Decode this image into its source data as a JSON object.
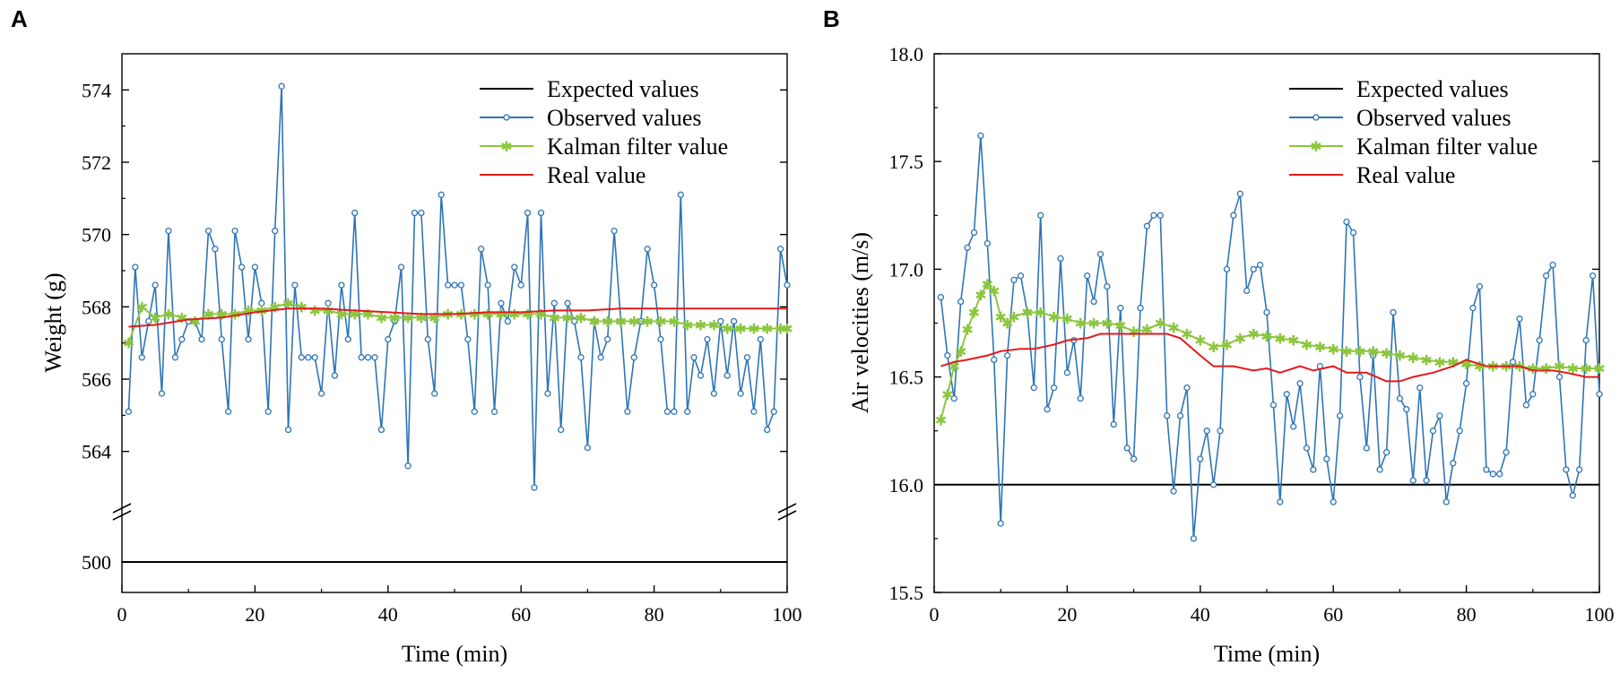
{
  "colors": {
    "expected": "#000000",
    "observed": "#2e75b6",
    "kalman": "#8cc63f",
    "real": "#e41a1c"
  },
  "chart_data": [
    {
      "panel": "A",
      "type": "line",
      "xlabel": "Time (min)",
      "ylabel": "Weight (g)",
      "xlim": [
        0,
        100
      ],
      "xticks": [
        0,
        20,
        40,
        60,
        80,
        100
      ],
      "xtick_labels": [
        "0",
        "20",
        "40",
        "60",
        "80",
        "100"
      ],
      "ylim_upper": [
        563,
        575
      ],
      "ylim_lower": [
        498,
        502
      ],
      "axis_break": true,
      "yticks": [
        500,
        564,
        566,
        568,
        570,
        572,
        574
      ],
      "ytick_labels": [
        "500",
        "564",
        "566",
        "568",
        "570",
        "572",
        "574"
      ],
      "legend": [
        "Expected values",
        "Observed values",
        "Kalman filter value",
        "Real value"
      ],
      "legend_position": "top-right",
      "series": [
        {
          "name": "Expected values",
          "x": [
            0,
            100
          ],
          "values": [
            500,
            500
          ]
        },
        {
          "name": "Observed values",
          "x": [
            1,
            2,
            3,
            4,
            5,
            6,
            7,
            8,
            9,
            10,
            11,
            12,
            13,
            14,
            15,
            16,
            17,
            18,
            19,
            20,
            21,
            22,
            23,
            24,
            25,
            26,
            27,
            28,
            29,
            30,
            31,
            32,
            33,
            34,
            35,
            36,
            37,
            38,
            39,
            40,
            41,
            42,
            43,
            44,
            45,
            46,
            47,
            48,
            49,
            50,
            51,
            52,
            53,
            54,
            55,
            56,
            57,
            58,
            59,
            60,
            61,
            62,
            63,
            64,
            65,
            66,
            67,
            68,
            69,
            70,
            71,
            72,
            73,
            74,
            75,
            76,
            77,
            78,
            79,
            80,
            81,
            82,
            83,
            84,
            85,
            86,
            87,
            88,
            89,
            90,
            91,
            92,
            93,
            94,
            95,
            96,
            97,
            98,
            99,
            100
          ],
          "values": [
            565.1,
            569.1,
            566.6,
            567.6,
            568.6,
            565.6,
            570.1,
            566.6,
            567.1,
            567.6,
            567.6,
            567.1,
            570.1,
            569.6,
            567.1,
            565.1,
            570.1,
            569.1,
            567.1,
            569.1,
            568.1,
            565.1,
            570.1,
            574.1,
            564.6,
            568.6,
            566.6,
            566.6,
            566.6,
            565.6,
            568.1,
            566.1,
            568.6,
            567.1,
            570.6,
            566.6,
            566.6,
            566.6,
            564.6,
            567.1,
            567.6,
            569.1,
            563.6,
            570.6,
            570.6,
            567.1,
            565.6,
            571.1,
            568.6,
            568.6,
            568.6,
            567.1,
            565.1,
            569.6,
            568.6,
            565.1,
            568.1,
            567.6,
            569.1,
            568.6,
            570.6,
            563.0,
            570.6,
            565.6,
            568.1,
            564.6,
            568.1,
            567.6,
            566.6,
            564.1,
            567.6,
            566.6,
            567.1,
            570.1,
            567.6,
            565.1,
            566.6,
            567.6,
            569.6,
            568.6,
            567.1,
            565.1,
            565.1,
            571.1,
            565.1,
            566.6,
            566.1,
            567.1,
            565.6,
            567.6,
            566.1,
            567.6,
            565.6,
            566.6,
            565.1,
            567.1,
            564.6,
            565.1,
            569.6,
            568.6
          ]
        },
        {
          "name": "Kalman filter value",
          "x": [
            1,
            3,
            5,
            7,
            9,
            11,
            13,
            15,
            17,
            19,
            21,
            23,
            25,
            27,
            29,
            31,
            33,
            35,
            37,
            39,
            41,
            43,
            45,
            47,
            49,
            51,
            53,
            55,
            57,
            59,
            61,
            63,
            65,
            67,
            69,
            71,
            73,
            75,
            77,
            79,
            81,
            83,
            85,
            87,
            89,
            91,
            93,
            95,
            97,
            99,
            100
          ],
          "values": [
            567.0,
            568.0,
            567.7,
            567.8,
            567.7,
            567.6,
            567.8,
            567.8,
            567.8,
            567.9,
            567.9,
            568.0,
            568.1,
            568.0,
            567.9,
            567.9,
            567.8,
            567.8,
            567.8,
            567.7,
            567.7,
            567.7,
            567.7,
            567.7,
            567.8,
            567.8,
            567.8,
            567.8,
            567.8,
            567.8,
            567.8,
            567.8,
            567.7,
            567.7,
            567.7,
            567.6,
            567.6,
            567.6,
            567.6,
            567.6,
            567.6,
            567.6,
            567.5,
            567.5,
            567.5,
            567.4,
            567.4,
            567.4,
            567.4,
            567.4,
            567.4
          ]
        },
        {
          "name": "Real value",
          "x": [
            1,
            5,
            10,
            15,
            20,
            25,
            30,
            35,
            40,
            45,
            50,
            55,
            60,
            65,
            70,
            75,
            80,
            85,
            90,
            95,
            100
          ],
          "values": [
            567.45,
            567.5,
            567.65,
            567.7,
            567.85,
            567.95,
            567.95,
            567.9,
            567.85,
            567.8,
            567.8,
            567.85,
            567.85,
            567.9,
            567.9,
            567.95,
            567.95,
            567.95,
            567.95,
            567.95,
            567.95
          ]
        }
      ]
    },
    {
      "panel": "B",
      "type": "line",
      "xlabel": "Time (min)",
      "ylabel": "Air velocities (m/s)",
      "xlim": [
        0,
        100
      ],
      "xticks": [
        0,
        20,
        40,
        60,
        80,
        100
      ],
      "xtick_labels": [
        "0",
        "20",
        "40",
        "60",
        "80",
        "100"
      ],
      "ylim": [
        15.5,
        18.0
      ],
      "yticks": [
        15.5,
        16.0,
        16.5,
        17.0,
        17.5,
        18.0
      ],
      "ytick_labels": [
        "15.5",
        "16.0",
        "16.5",
        "17.0",
        "17.5",
        "18.0"
      ],
      "legend": [
        "Expected values",
        "Observed values",
        "Kalman filter value",
        "Real value"
      ],
      "legend_position": "top-right",
      "series": [
        {
          "name": "Expected values",
          "x": [
            0,
            100
          ],
          "values": [
            16.0,
            16.0
          ]
        },
        {
          "name": "Observed values",
          "x": [
            1,
            2,
            3,
            4,
            5,
            6,
            7,
            8,
            9,
            10,
            11,
            12,
            13,
            14,
            15,
            16,
            17,
            18,
            19,
            20,
            21,
            22,
            23,
            24,
            25,
            26,
            27,
            28,
            29,
            30,
            31,
            32,
            33,
            34,
            35,
            36,
            37,
            38,
            39,
            40,
            41,
            42,
            43,
            44,
            45,
            46,
            47,
            48,
            49,
            50,
            51,
            52,
            53,
            54,
            55,
            56,
            57,
            58,
            59,
            60,
            61,
            62,
            63,
            64,
            65,
            66,
            67,
            68,
            69,
            70,
            71,
            72,
            73,
            74,
            75,
            76,
            77,
            78,
            79,
            80,
            81,
            82,
            83,
            84,
            85,
            86,
            87,
            88,
            89,
            90,
            91,
            92,
            93,
            94,
            95,
            96,
            97,
            98,
            99,
            100
          ],
          "values": [
            16.87,
            16.6,
            16.4,
            16.85,
            17.1,
            17.17,
            17.62,
            17.12,
            16.58,
            15.82,
            16.6,
            16.95,
            16.97,
            16.8,
            16.45,
            17.25,
            16.35,
            16.45,
            17.05,
            16.52,
            16.67,
            16.4,
            16.97,
            16.85,
            17.07,
            16.92,
            16.28,
            16.82,
            16.17,
            16.12,
            16.82,
            17.2,
            17.25,
            17.25,
            16.32,
            15.97,
            16.32,
            16.45,
            15.75,
            16.12,
            16.25,
            16.0,
            16.25,
            17.0,
            17.25,
            17.35,
            16.9,
            17.0,
            17.02,
            16.8,
            16.37,
            15.92,
            16.42,
            16.27,
            16.47,
            16.17,
            16.07,
            16.55,
            16.12,
            15.92,
            16.32,
            17.22,
            17.17,
            16.5,
            16.17,
            16.6,
            16.07,
            16.15,
            16.8,
            16.4,
            16.35,
            16.02,
            16.45,
            16.02,
            16.25,
            16.32,
            15.92,
            16.1,
            16.25,
            16.47,
            16.82,
            16.92,
            16.07,
            16.05,
            16.05,
            16.15,
            16.57,
            16.77,
            16.37,
            16.42,
            16.67,
            16.97,
            17.02,
            16.5,
            16.07,
            15.95,
            16.07,
            16.67,
            16.97,
            16.42
          ]
        },
        {
          "name": "Kalman filter value",
          "x": [
            1,
            2,
            3,
            4,
            5,
            6,
            7,
            8,
            9,
            10,
            11,
            12,
            14,
            16,
            18,
            20,
            22,
            24,
            26,
            28,
            30,
            32,
            34,
            36,
            38,
            40,
            42,
            44,
            46,
            48,
            50,
            52,
            54,
            56,
            58,
            60,
            62,
            64,
            66,
            68,
            70,
            72,
            74,
            76,
            78,
            80,
            82,
            84,
            86,
            88,
            90,
            92,
            94,
            96,
            98,
            100
          ],
          "values": [
            16.3,
            16.42,
            16.55,
            16.62,
            16.72,
            16.8,
            16.88,
            16.93,
            16.9,
            16.78,
            16.75,
            16.78,
            16.8,
            16.8,
            16.78,
            16.77,
            16.75,
            16.75,
            16.75,
            16.74,
            16.71,
            16.72,
            16.75,
            16.73,
            16.7,
            16.67,
            16.64,
            16.65,
            16.68,
            16.7,
            16.69,
            16.68,
            16.67,
            16.65,
            16.64,
            16.63,
            16.62,
            16.62,
            16.62,
            16.61,
            16.6,
            16.59,
            16.58,
            16.57,
            16.57,
            16.56,
            16.55,
            16.55,
            16.55,
            16.55,
            16.54,
            16.54,
            16.55,
            16.54,
            16.54,
            16.54
          ]
        },
        {
          "name": "Real value",
          "x": [
            1,
            3,
            5,
            8,
            10,
            13,
            15,
            18,
            20,
            23,
            25,
            28,
            30,
            33,
            35,
            37,
            40,
            42,
            45,
            48,
            50,
            52,
            55,
            57,
            60,
            62,
            65,
            68,
            70,
            72,
            75,
            78,
            80,
            83,
            85,
            88,
            90,
            93,
            95,
            98,
            100
          ],
          "values": [
            16.55,
            16.57,
            16.58,
            16.6,
            16.62,
            16.63,
            16.63,
            16.65,
            16.67,
            16.68,
            16.7,
            16.7,
            16.7,
            16.7,
            16.7,
            16.68,
            16.6,
            16.55,
            16.55,
            16.53,
            16.54,
            16.52,
            16.55,
            16.53,
            16.55,
            16.52,
            16.52,
            16.48,
            16.48,
            16.5,
            16.52,
            16.55,
            16.58,
            16.55,
            16.55,
            16.55,
            16.53,
            16.53,
            16.52,
            16.5,
            16.5
          ]
        }
      ]
    }
  ]
}
